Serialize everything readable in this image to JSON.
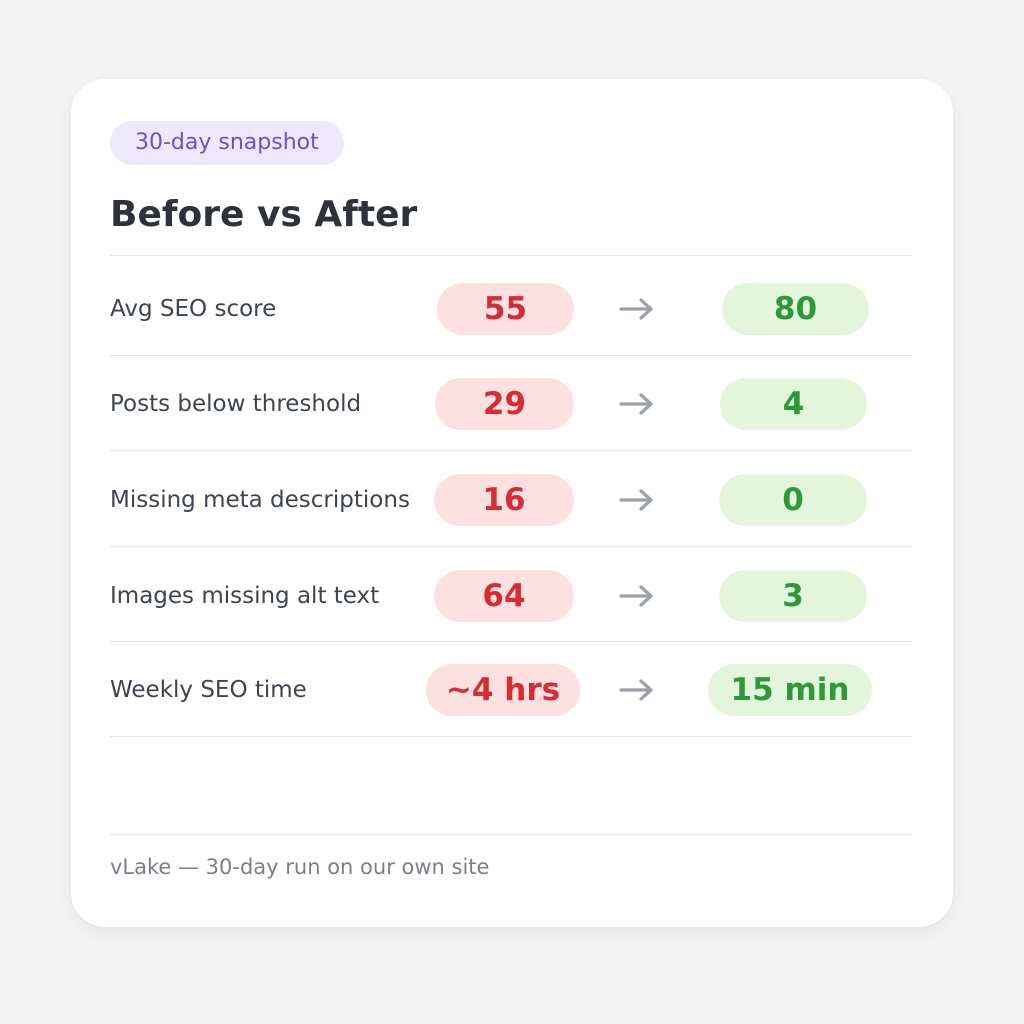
{
  "badge": "30-day snapshot",
  "title": "Before vs After",
  "rows": [
    {
      "label": "Avg SEO score",
      "before": "55",
      "after": "80"
    },
    {
      "label": "Posts below threshold",
      "before": "29",
      "after": "4"
    },
    {
      "label": "Missing meta descriptions",
      "before": "16",
      "after": "0"
    },
    {
      "label": "Images missing alt text",
      "before": "64",
      "after": "3"
    },
    {
      "label": "Weekly SEO time",
      "before": "~4 hrs",
      "after": "15 min"
    }
  ],
  "footer": "vLake — 30-day run on our own site",
  "colors": {
    "badge_bg": "#ede8fb",
    "badge_text": "#6a4fd0",
    "before_bg": "#fde0e0",
    "before_text": "#d92b34",
    "after_bg": "#e3f6dc",
    "after_text": "#2c9a38",
    "arrow": "#9ca0ab"
  },
  "icons": {
    "transition": "arrow-right-icon"
  }
}
